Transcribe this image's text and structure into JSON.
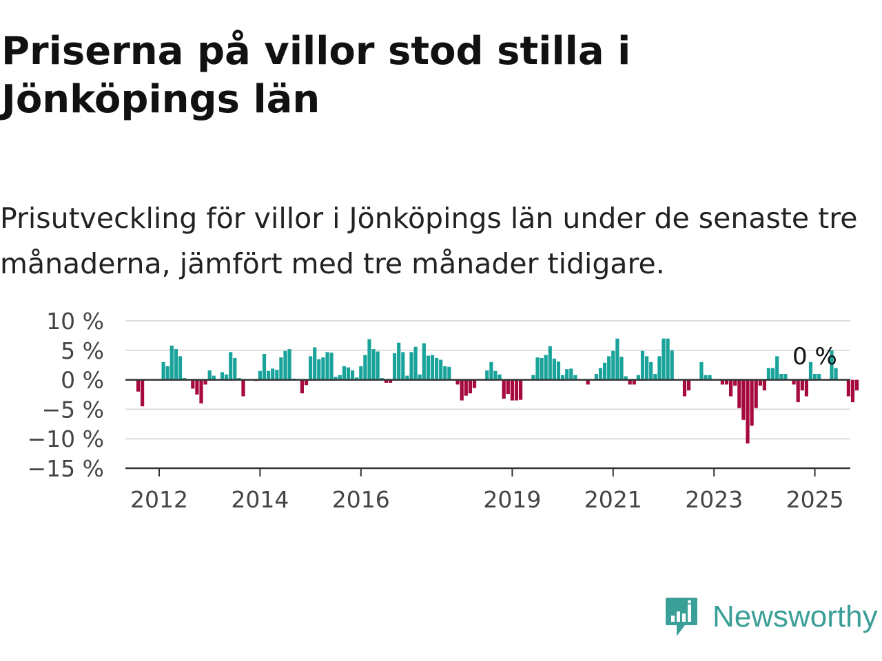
{
  "title": "Priserna på villor stod stilla i Jönköpings län",
  "subtitle": "Prisutveckling för villor i Jönköpings län under de senaste tre månaderna, jämfört med tre månader tidigare.",
  "brand": {
    "name": "Newsworthy",
    "icon": "newsworthy-logo-icon",
    "color": "#3a9f97"
  },
  "chart_data": {
    "type": "bar",
    "title": "Priserna på villor stod stilla i Jönköpings län",
    "xlabel": "",
    "ylabel": "",
    "ylim": [
      -15,
      10
    ],
    "y_ticks": [
      {
        "value": 10,
        "label": "10 %"
      },
      {
        "value": 5,
        "label": "5 %"
      },
      {
        "value": 0,
        "label": "0 %"
      },
      {
        "value": -5,
        "label": "−5 %"
      },
      {
        "value": -10,
        "label": "−10 %"
      },
      {
        "value": -15,
        "label": "−15 %"
      }
    ],
    "x_ticks": [
      "2012",
      "2014",
      "2016",
      "2019",
      "2021",
      "2023",
      "2025"
    ],
    "start_year": 2011,
    "start_month": 5,
    "grid": true,
    "positive_color": "#1aa39a",
    "negative_color": "#a6093d",
    "annotation": {
      "label": "0 %",
      "value": 0
    },
    "values": [
      0,
      0,
      0,
      -2,
      -4.5,
      0,
      0,
      0,
      0,
      3,
      2.3,
      5.8,
      5.2,
      4,
      0.3,
      0.1,
      -1.5,
      -2.5,
      -4,
      -0.8,
      1.6,
      0.7,
      0.1,
      1.3,
      0.9,
      4.7,
      3.7,
      0.3,
      -2.8,
      0,
      0,
      -0.2,
      1.5,
      4.4,
      1.5,
      1.9,
      1.7,
      3.8,
      4.9,
      5.2,
      0.2,
      0.1,
      -2.3,
      -0.9,
      4,
      5.5,
      3.5,
      3.8,
      4.7,
      4.6,
      0.5,
      0.8,
      2.3,
      2.1,
      1.6,
      0.4,
      2.3,
      4.2,
      6.9,
      5.2,
      4.8,
      0.3,
      -0.5,
      -0.5,
      4.5,
      6.3,
      4.7,
      0.7,
      4.7,
      5.6,
      0.9,
      6.2,
      4.1,
      4.2,
      3.7,
      3.4,
      2.3,
      2.2,
      0,
      -0.8,
      -3.5,
      -2.7,
      -2.3,
      -1.4,
      0.1,
      0.1,
      1.6,
      3,
      1.5,
      0.9,
      -3.2,
      -2.4,
      -3.5,
      -3.5,
      -3.4,
      0,
      0,
      0.8,
      3.8,
      3.7,
      4.2,
      5.7,
      3.6,
      3.1,
      0.8,
      1.8,
      1.9,
      0.8,
      0,
      0,
      -0.8,
      0,
      1,
      2,
      2.9,
      4,
      4.9,
      7,
      3.9,
      0.6,
      -0.8,
      -0.8,
      0.8,
      4.9,
      4,
      3,
      1,
      4,
      7,
      7,
      5,
      0,
      0,
      -2.8,
      -1.8,
      0,
      0,
      3,
      0.8,
      0.8,
      0,
      0,
      -0.8,
      -0.8,
      -2.8,
      -1,
      -4.8,
      -6.8,
      -10.8,
      -7.8,
      -4.8,
      -1,
      -1.8,
      2,
      2,
      4,
      1,
      1,
      0,
      -0.8,
      -3.8,
      -1.8,
      -2.8,
      3,
      1,
      1,
      0,
      0,
      5,
      2,
      0,
      0,
      -2.8,
      -3.8,
      -1.8
    ]
  }
}
